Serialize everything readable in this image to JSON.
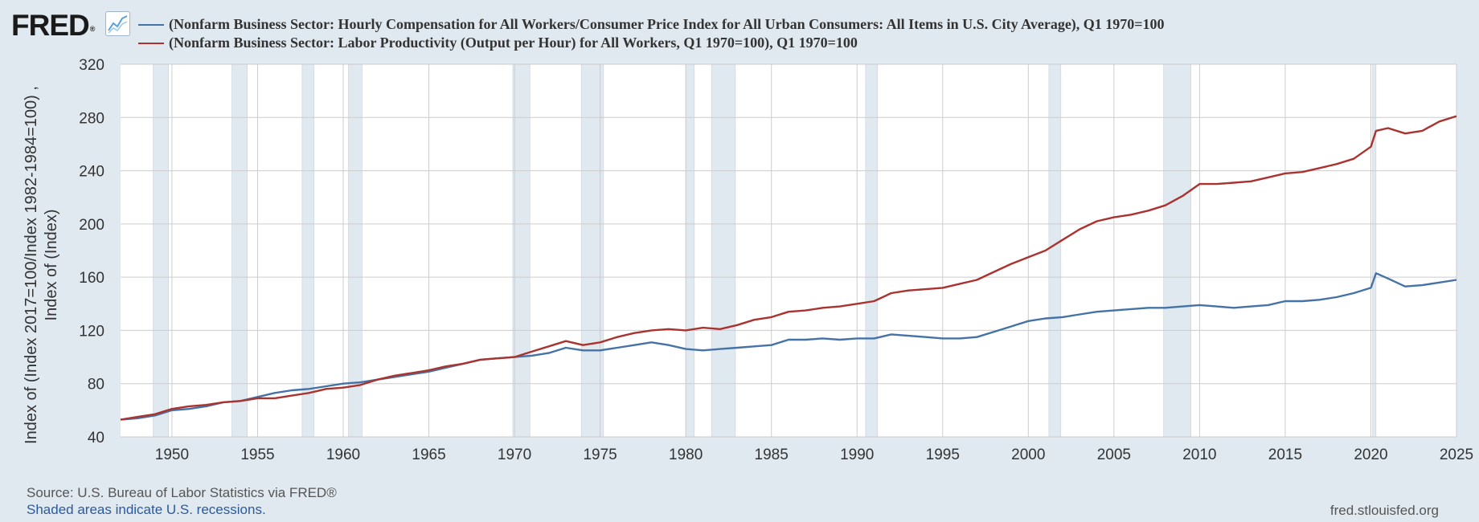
{
  "brand": {
    "logo_text": "FRED",
    "logo_badge": "®",
    "graph_icon": "line-graph-icon"
  },
  "footer": {
    "source": "Source: U.S. Bureau of Labor Statistics via FRED®",
    "recession_note": "Shaded areas indicate U.S. recessions.",
    "site": "fred.stlouisfed.org"
  },
  "chart_data": {
    "type": "line",
    "title": "",
    "ylabel_lines": [
      "Index of (Index 2017=100/Index 1982-1984=100) ,",
      "Index of (Index)"
    ],
    "xlim": [
      1947,
      2025
    ],
    "ylim": [
      40,
      320
    ],
    "grid": true,
    "legend_position": "top",
    "x_ticks": [
      1950,
      1955,
      1960,
      1965,
      1970,
      1975,
      1980,
      1985,
      1990,
      1995,
      2000,
      2005,
      2010,
      2015,
      2020,
      2025
    ],
    "y_ticks": [
      40,
      80,
      120,
      160,
      200,
      240,
      280,
      320
    ],
    "recessions": [
      [
        1948.9,
        1949.8
      ],
      [
        1953.5,
        1954.4
      ],
      [
        1957.6,
        1958.3
      ],
      [
        1960.3,
        1961.1
      ],
      [
        1969.9,
        1970.9
      ],
      [
        1973.9,
        1975.2
      ],
      [
        1980.0,
        1980.5
      ],
      [
        1981.5,
        1982.9
      ],
      [
        1990.5,
        1991.2
      ],
      [
        2001.2,
        2001.9
      ],
      [
        2007.9,
        2009.5
      ],
      [
        2020.1,
        2020.3
      ]
    ],
    "series": [
      {
        "name": "(Nonfarm Business Sector: Hourly Compensation for All Workers/Consumer Price Index for All Urban Consumers: All Items in U.S. City Average), Q1 1970=100",
        "color": "#4572a7",
        "points": [
          [
            1947,
            53
          ],
          [
            1948,
            54
          ],
          [
            1949,
            56
          ],
          [
            1950,
            60
          ],
          [
            1951,
            61
          ],
          [
            1952,
            63
          ],
          [
            1953,
            66
          ],
          [
            1954,
            67
          ],
          [
            1955,
            70
          ],
          [
            1956,
            73
          ],
          [
            1957,
            75
          ],
          [
            1958,
            76
          ],
          [
            1959,
            78
          ],
          [
            1960,
            80
          ],
          [
            1961,
            81
          ],
          [
            1962,
            83
          ],
          [
            1963,
            85
          ],
          [
            1964,
            87
          ],
          [
            1965,
            89
          ],
          [
            1966,
            92
          ],
          [
            1967,
            95
          ],
          [
            1968,
            98
          ],
          [
            1969,
            99
          ],
          [
            1970,
            100
          ],
          [
            1971,
            101
          ],
          [
            1972,
            103
          ],
          [
            1973,
            107
          ],
          [
            1974,
            105
          ],
          [
            1975,
            105
          ],
          [
            1976,
            107
          ],
          [
            1977,
            109
          ],
          [
            1978,
            111
          ],
          [
            1979,
            109
          ],
          [
            1980,
            106
          ],
          [
            1981,
            105
          ],
          [
            1982,
            106
          ],
          [
            1983,
            107
          ],
          [
            1984,
            108
          ],
          [
            1985,
            109
          ],
          [
            1986,
            113
          ],
          [
            1987,
            113
          ],
          [
            1988,
            114
          ],
          [
            1989,
            113
          ],
          [
            1990,
            114
          ],
          [
            1991,
            114
          ],
          [
            1992,
            117
          ],
          [
            1993,
            116
          ],
          [
            1994,
            115
          ],
          [
            1995,
            114
          ],
          [
            1996,
            114
          ],
          [
            1997,
            115
          ],
          [
            1998,
            119
          ],
          [
            1999,
            123
          ],
          [
            2000,
            127
          ],
          [
            2001,
            129
          ],
          [
            2002,
            130
          ],
          [
            2003,
            132
          ],
          [
            2004,
            134
          ],
          [
            2005,
            135
          ],
          [
            2006,
            136
          ],
          [
            2007,
            137
          ],
          [
            2008,
            137
          ],
          [
            2009,
            138
          ],
          [
            2010,
            139
          ],
          [
            2011,
            138
          ],
          [
            2012,
            137
          ],
          [
            2013,
            138
          ],
          [
            2014,
            139
          ],
          [
            2015,
            142
          ],
          [
            2016,
            142
          ],
          [
            2017,
            143
          ],
          [
            2018,
            145
          ],
          [
            2019,
            148
          ],
          [
            2020,
            152
          ],
          [
            2020.3,
            163
          ],
          [
            2021,
            159
          ],
          [
            2022,
            153
          ],
          [
            2023,
            154
          ],
          [
            2024,
            156
          ],
          [
            2025,
            158
          ]
        ]
      },
      {
        "name": "(Nonfarm Business Sector: Labor Productivity (Output per Hour) for All Workers, Q1 1970=100), Q1 1970=100",
        "color": "#aa3330",
        "points": [
          [
            1947,
            53
          ],
          [
            1948,
            55
          ],
          [
            1949,
            57
          ],
          [
            1950,
            61
          ],
          [
            1951,
            63
          ],
          [
            1952,
            64
          ],
          [
            1953,
            66
          ],
          [
            1954,
            67
          ],
          [
            1955,
            69
          ],
          [
            1956,
            69
          ],
          [
            1957,
            71
          ],
          [
            1958,
            73
          ],
          [
            1959,
            76
          ],
          [
            1960,
            77
          ],
          [
            1961,
            79
          ],
          [
            1962,
            83
          ],
          [
            1963,
            86
          ],
          [
            1964,
            88
          ],
          [
            1965,
            90
          ],
          [
            1966,
            93
          ],
          [
            1967,
            95
          ],
          [
            1968,
            98
          ],
          [
            1969,
            99
          ],
          [
            1970,
            100
          ],
          [
            1971,
            104
          ],
          [
            1972,
            108
          ],
          [
            1973,
            112
          ],
          [
            1974,
            109
          ],
          [
            1975,
            111
          ],
          [
            1976,
            115
          ],
          [
            1977,
            118
          ],
          [
            1978,
            120
          ],
          [
            1979,
            121
          ],
          [
            1980,
            120
          ],
          [
            1981,
            122
          ],
          [
            1982,
            121
          ],
          [
            1983,
            124
          ],
          [
            1984,
            128
          ],
          [
            1985,
            130
          ],
          [
            1986,
            134
          ],
          [
            1987,
            135
          ],
          [
            1988,
            137
          ],
          [
            1989,
            138
          ],
          [
            1990,
            140
          ],
          [
            1991,
            142
          ],
          [
            1992,
            148
          ],
          [
            1993,
            150
          ],
          [
            1994,
            151
          ],
          [
            1995,
            152
          ],
          [
            1996,
            155
          ],
          [
            1997,
            158
          ],
          [
            1998,
            164
          ],
          [
            1999,
            170
          ],
          [
            2000,
            175
          ],
          [
            2001,
            180
          ],
          [
            2002,
            188
          ],
          [
            2003,
            196
          ],
          [
            2004,
            202
          ],
          [
            2005,
            205
          ],
          [
            2006,
            207
          ],
          [
            2007,
            210
          ],
          [
            2008,
            214
          ],
          [
            2009,
            221
          ],
          [
            2010,
            230
          ],
          [
            2011,
            230
          ],
          [
            2012,
            231
          ],
          [
            2013,
            232
          ],
          [
            2014,
            235
          ],
          [
            2015,
            238
          ],
          [
            2016,
            239
          ],
          [
            2017,
            242
          ],
          [
            2018,
            245
          ],
          [
            2019,
            249
          ],
          [
            2020,
            258
          ],
          [
            2020.3,
            270
          ],
          [
            2021,
            272
          ],
          [
            2022,
            268
          ],
          [
            2023,
            270
          ],
          [
            2024,
            277
          ],
          [
            2025,
            281
          ]
        ]
      }
    ]
  }
}
